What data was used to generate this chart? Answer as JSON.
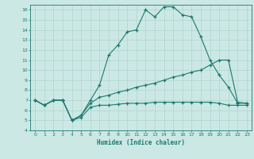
{
  "xlabel": "Humidex (Indice chaleur)",
  "background_color": "#cce8e4",
  "grid_color": "#aed4cf",
  "line_color": "#1a7a6e",
  "xlim": [
    -0.5,
    23.5
  ],
  "ylim": [
    4,
    16.5
  ],
  "xticks": [
    0,
    1,
    2,
    3,
    4,
    5,
    6,
    7,
    8,
    9,
    10,
    11,
    12,
    13,
    14,
    15,
    16,
    17,
    18,
    19,
    20,
    21,
    22,
    23
  ],
  "yticks": [
    4,
    5,
    6,
    7,
    8,
    9,
    10,
    11,
    12,
    13,
    14,
    15,
    16
  ],
  "series3_x": [
    0,
    1,
    2,
    3,
    4,
    5,
    6,
    7,
    8,
    9,
    10,
    11,
    12,
    13,
    14,
    15,
    16,
    17,
    18,
    19,
    20,
    21,
    22,
    23
  ],
  "series3_y": [
    7.0,
    6.5,
    7.0,
    7.0,
    5.0,
    5.5,
    7.0,
    8.5,
    11.5,
    12.5,
    13.8,
    14.0,
    16.0,
    15.3,
    16.3,
    16.3,
    15.5,
    15.3,
    13.3,
    11.0,
    9.5,
    8.3,
    6.7,
    6.7
  ],
  "series2_x": [
    0,
    1,
    2,
    3,
    4,
    5,
    6,
    7,
    8,
    9,
    10,
    11,
    12,
    13,
    14,
    15,
    16,
    17,
    18,
    19,
    20,
    21,
    22,
    23
  ],
  "series2_y": [
    7.0,
    6.5,
    7.0,
    7.0,
    5.0,
    5.5,
    6.7,
    7.3,
    7.5,
    7.8,
    8.0,
    8.3,
    8.5,
    8.7,
    9.0,
    9.3,
    9.5,
    9.8,
    10.0,
    10.5,
    11.0,
    11.0,
    6.8,
    6.7
  ],
  "series1_x": [
    0,
    1,
    2,
    3,
    4,
    5,
    6,
    7,
    8,
    9,
    10,
    11,
    12,
    13,
    14,
    15,
    16,
    17,
    18,
    19,
    20,
    21,
    22,
    23
  ],
  "series1_y": [
    7.0,
    6.5,
    7.0,
    7.0,
    5.0,
    5.3,
    6.3,
    6.5,
    6.5,
    6.6,
    6.7,
    6.7,
    6.7,
    6.8,
    6.8,
    6.8,
    6.8,
    6.8,
    6.8,
    6.8,
    6.7,
    6.5,
    6.5,
    6.5
  ]
}
